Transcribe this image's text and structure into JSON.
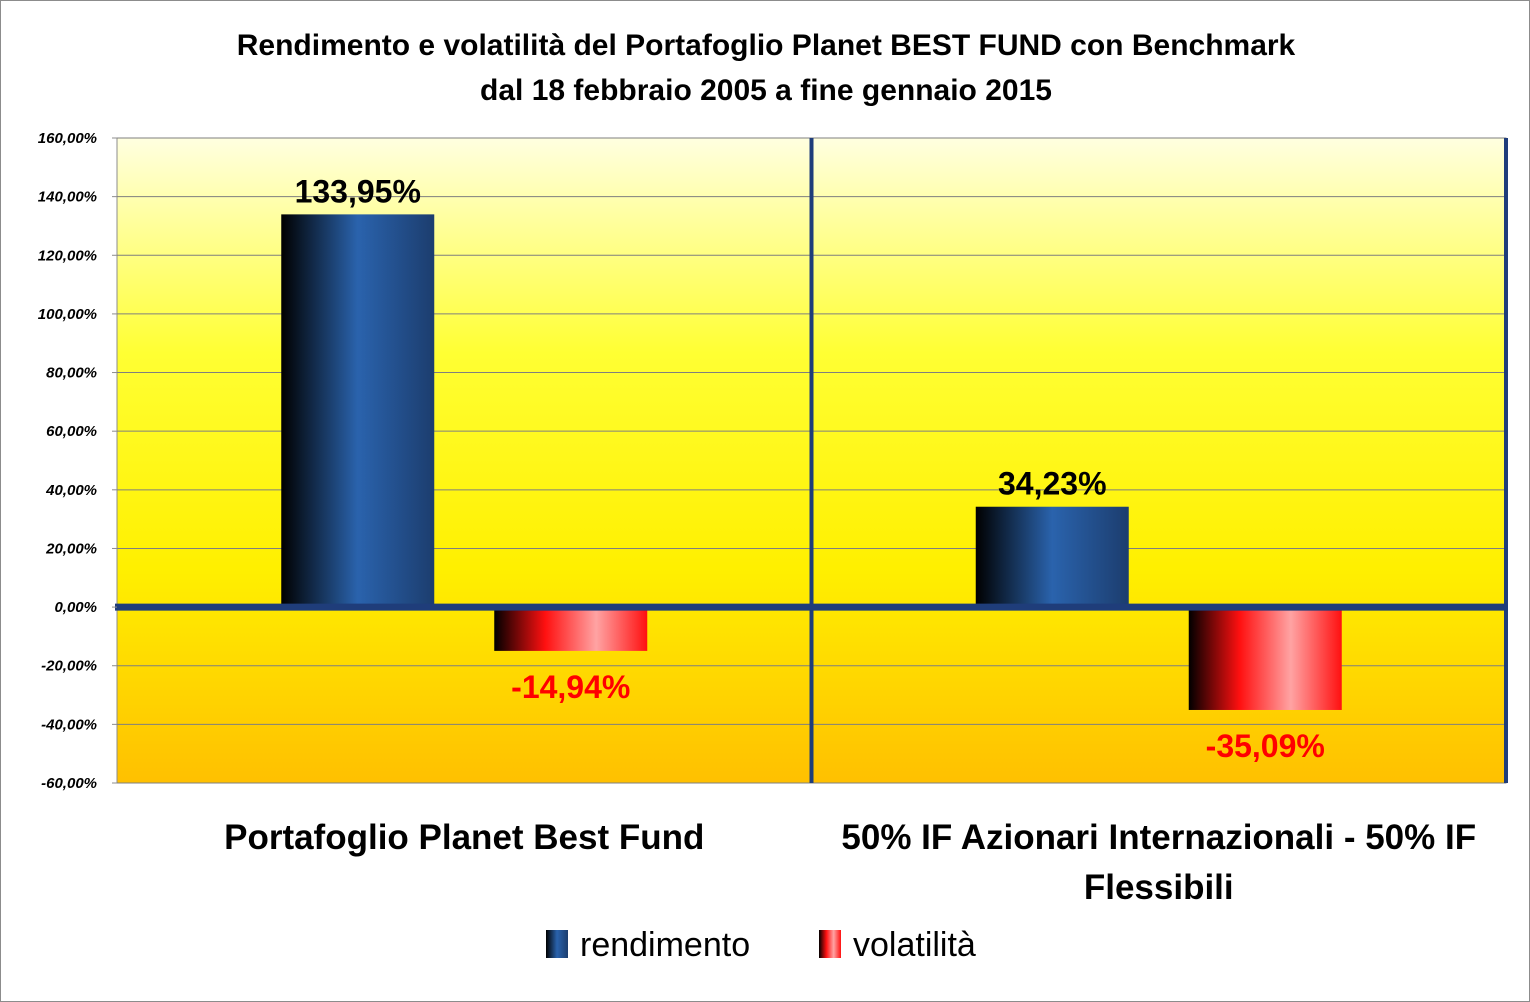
{
  "chart_data": {
    "type": "bar",
    "title_lines": [
      "Rendimento e volatilità del Portafoglio Planet BEST FUND con Benchmark",
      "dal 18 febbraio 2005 a fine gennaio 2015"
    ],
    "categories": [
      {
        "lines": [
          "Portafoglio Planet Best Fund"
        ]
      },
      {
        "lines": [
          "50% IF Azionari Internazionali - 50% IF",
          "Flessibili"
        ]
      }
    ],
    "series": [
      {
        "name": "rendimento",
        "values": [
          133.95,
          34.23
        ],
        "labels": [
          "133,95%",
          "34,23%"
        ],
        "label_color": "#000000",
        "gradient": [
          "#000000",
          "#2a63ad",
          "#1c3d6e"
        ]
      },
      {
        "name": "volatilità",
        "values": [
          -14.94,
          -35.09
        ],
        "labels": [
          "-14,94%",
          "-35,09%"
        ],
        "label_color": "#ff0000",
        "gradient": [
          "#000000",
          "#ff1010",
          "#ffa3a3",
          "#ff1010"
        ]
      }
    ],
    "ylim": [
      -60,
      160
    ],
    "yticks": [
      {
        "v": 160,
        "label": "160,00%"
      },
      {
        "v": 140,
        "label": "140,00%"
      },
      {
        "v": 120,
        "label": "120,00%"
      },
      {
        "v": 100,
        "label": "100,00%"
      },
      {
        "v": 80,
        "label": "80,00%"
      },
      {
        "v": 60,
        "label": "60,00%"
      },
      {
        "v": 40,
        "label": "40,00%"
      },
      {
        "v": 20,
        "label": "20,00%"
      },
      {
        "v": 0,
        "label": "0,00%"
      },
      {
        "v": -20,
        "label": "-20,00%"
      },
      {
        "v": -40,
        "label": "-40,00%"
      },
      {
        "v": -60,
        "label": "-60,00%"
      }
    ],
    "grid": true,
    "legend_position": "bottom",
    "plot_background": [
      "#ffffe0",
      "#ffff33",
      "#fff000",
      "#ffc000"
    ],
    "axis_color": "#1f3d7a"
  }
}
